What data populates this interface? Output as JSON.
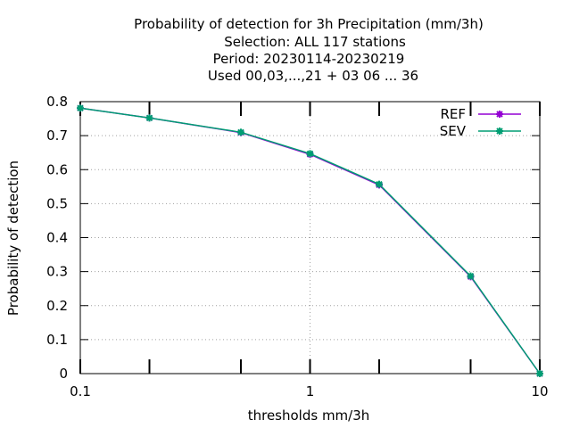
{
  "chart_data": {
    "type": "line",
    "title_lines": [
      "Probability of detection  for 3h Precipitation (mm/3h)",
      "Selection: ALL    117 stations",
      "Period: 20230114-20230219",
      "Used  00,03,...,21  + 03 06 ... 36"
    ],
    "xlabel": "thresholds mm/3h",
    "ylabel": "Probability of detection",
    "x_scale": "log",
    "xlim": [
      0.1,
      10
    ],
    "ylim": [
      0,
      0.8
    ],
    "x_ticks": [
      0.1,
      1,
      10
    ],
    "x_tick_labels": [
      "0.1",
      "1",
      "10"
    ],
    "x_minor_ticks": [
      0.2,
      0.5,
      2,
      5
    ],
    "y_ticks": [
      0,
      0.1,
      0.2,
      0.3,
      0.4,
      0.5,
      0.6,
      0.7,
      0.8
    ],
    "y_tick_labels": [
      "0",
      "0.1",
      "0.2",
      "0.3",
      "0.4",
      "0.5",
      "0.6",
      "0.7",
      "0.8"
    ],
    "grid": true,
    "legend_position": "top-right",
    "x": [
      0.1,
      0.2,
      0.5,
      1,
      2,
      5,
      10
    ],
    "series": [
      {
        "name": "REF",
        "color": "#9400d3",
        "values": [
          0.781,
          0.752,
          0.709,
          0.645,
          0.555,
          0.285,
          0.0
        ]
      },
      {
        "name": "SEV",
        "color": "#009e73",
        "values": [
          0.781,
          0.752,
          0.71,
          0.647,
          0.557,
          0.287,
          0.0
        ]
      }
    ]
  }
}
